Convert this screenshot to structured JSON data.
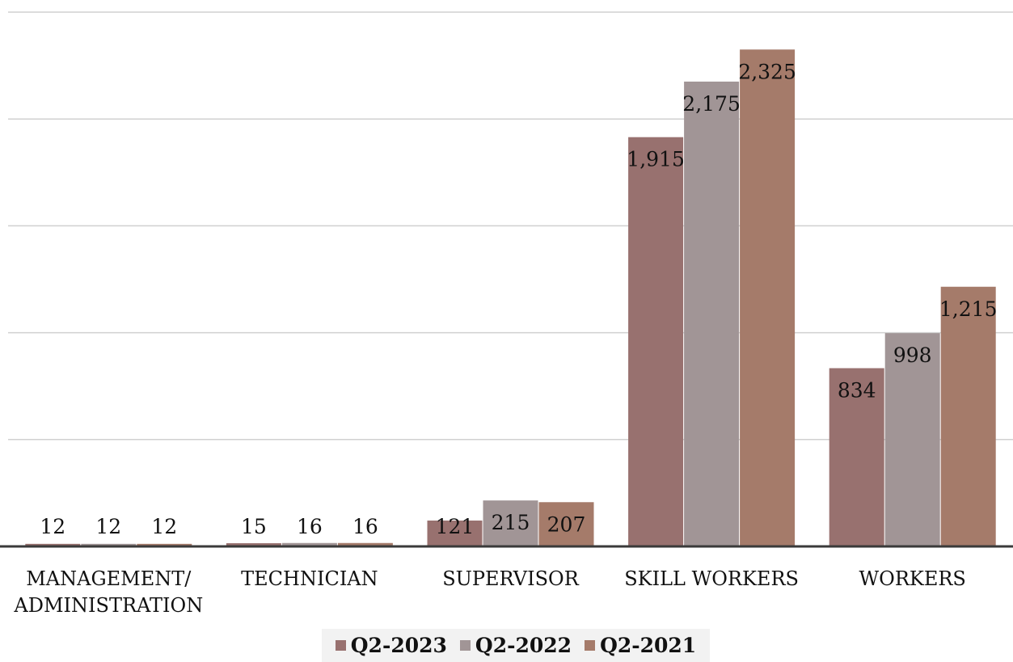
{
  "chart_data": {
    "type": "bar",
    "categories": [
      "MANAGEMENT/ ADMINISTRATION",
      "TECHNICIAN",
      "SUPERVISOR",
      "SKILL WORKERS",
      "WORKERS"
    ],
    "category_lines": [
      [
        "MANAGEMENT/",
        "ADMINISTRATION"
      ],
      [
        "TECHNICIAN"
      ],
      [
        "SUPERVISOR"
      ],
      [
        "SKILL WORKERS"
      ],
      [
        "WORKERS"
      ]
    ],
    "series": [
      {
        "name": "Q2-2023",
        "color": "#98716f",
        "values": [
          12,
          15,
          121,
          1915,
          834
        ],
        "labels": [
          "12",
          "15",
          "121",
          "1,915",
          "834"
        ]
      },
      {
        "name": "Q2-2022",
        "color": "#a19596",
        "values": [
          12,
          16,
          215,
          2175,
          998
        ],
        "labels": [
          "12",
          "16",
          "215",
          "2,175",
          "998"
        ]
      },
      {
        "name": "Q2-2021",
        "color": "#a57b6a",
        "values": [
          12,
          16,
          207,
          2325,
          1215
        ],
        "labels": [
          "12",
          "16",
          "207",
          "2,325",
          "1,215"
        ]
      }
    ],
    "ylim": [
      0,
      2500
    ],
    "grid": true,
    "legend_position": "bottom",
    "title": "",
    "xlabel": "",
    "ylabel": ""
  }
}
